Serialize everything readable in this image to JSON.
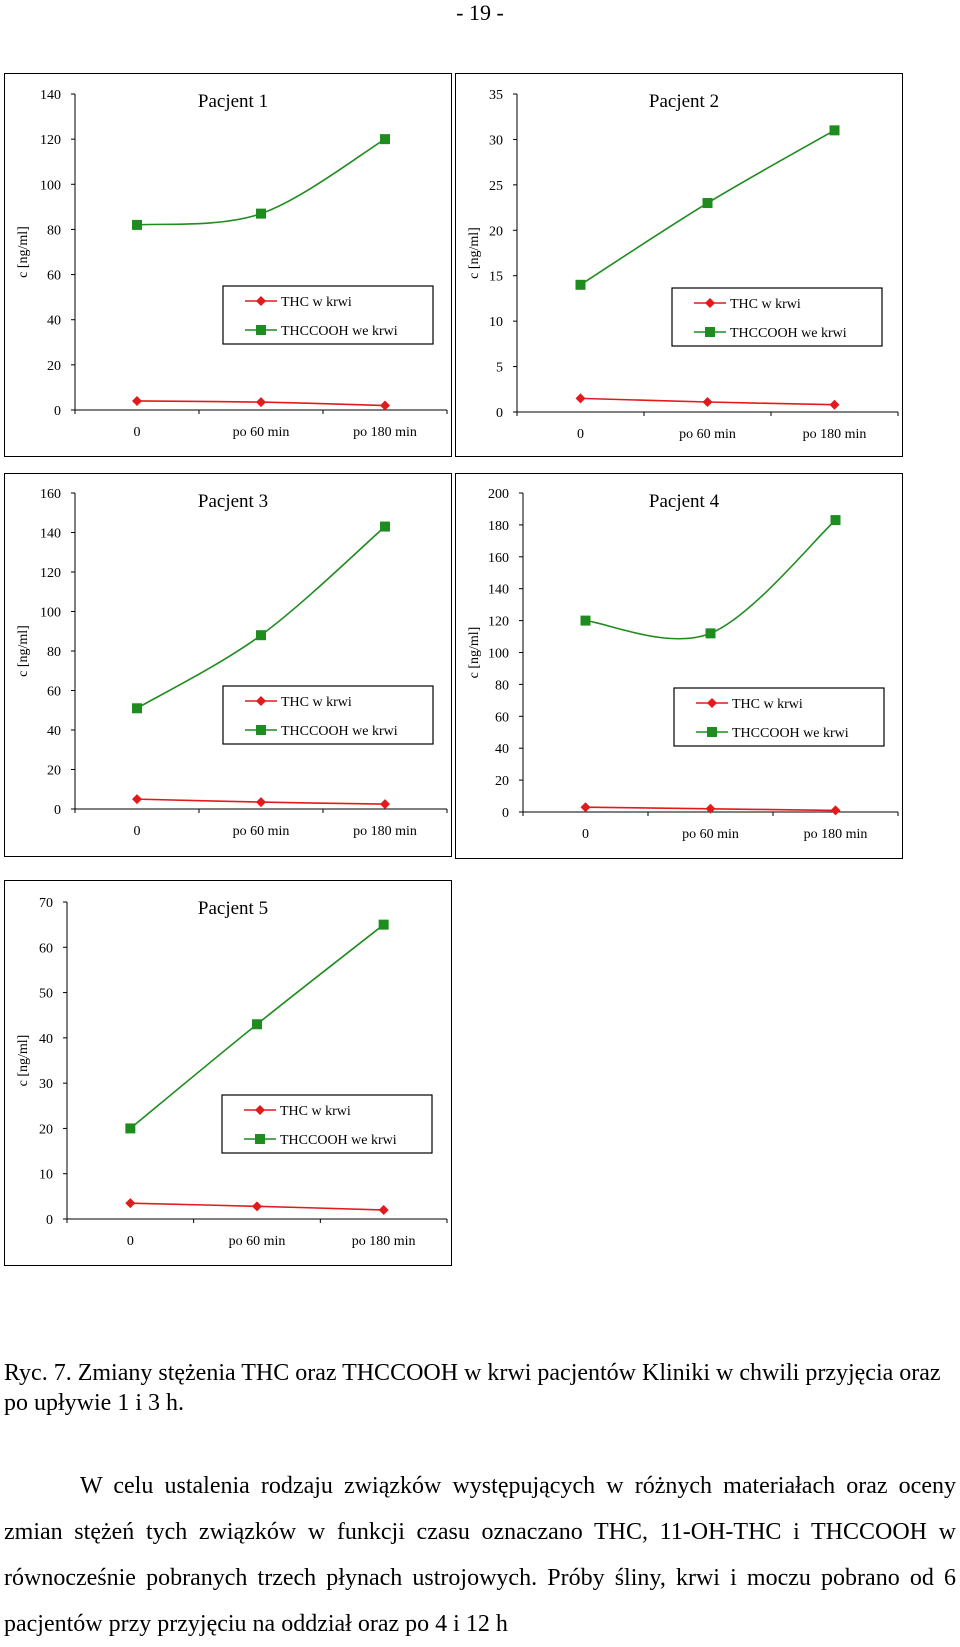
{
  "page_number": "- 19 -",
  "caption": "Ryc. 7. Zmiany stężenia THC oraz THCCOOH w krwi pacjentów Kliniki w chwili przyjęcia oraz po upływie 1 i 3 h.",
  "body_text": "W celu ustalenia rodzaju związków występujących w różnych materiałach oraz oceny zmian stężeń tych związków w funkcji czasu oznaczano THC, 11-OH-THC i THCCOOH w równocześnie pobranych trzech płynach ustrojowych. Próby śliny, krwi i moczu pobrano od 6 pacjentów przy przyjęciu na oddział oraz po 4 i 12 h",
  "colors": {
    "thc": "#e31a1c",
    "thccooh": "#1e8c1e",
    "axis": "#000000"
  },
  "chart_data": [
    {
      "type": "line",
      "title": "Pacjent 1",
      "ylabel": "c [ng/ml]",
      "categories": [
        "0",
        "po 60  min",
        "po 180  min"
      ],
      "ylim": [
        0,
        140
      ],
      "yticks": [
        0,
        20,
        40,
        60,
        80,
        100,
        120,
        140
      ],
      "series": [
        {
          "name": "THC w krwi",
          "values": [
            4,
            3.5,
            2
          ],
          "marker": "diamond"
        },
        {
          "name": "THCCOOH we krwi",
          "values": [
            82,
            87,
            120
          ],
          "marker": "square"
        }
      ]
    },
    {
      "type": "line",
      "title": "Pacjent 2",
      "ylabel": "c [ng/ml]",
      "categories": [
        "0",
        "po 60  min",
        "po 180  min"
      ],
      "ylim": [
        0,
        35
      ],
      "yticks": [
        0,
        5,
        10,
        15,
        20,
        25,
        30,
        35
      ],
      "series": [
        {
          "name": "THC w krwi",
          "values": [
            1.5,
            1.1,
            0.8
          ],
          "marker": "diamond"
        },
        {
          "name": "THCCOOH we krwi",
          "values": [
            14,
            23,
            31
          ],
          "marker": "square"
        }
      ]
    },
    {
      "type": "line",
      "title": "Pacjent 3",
      "ylabel": "c [ng/ml]",
      "categories": [
        "0",
        "po 60  min",
        "po 180  min"
      ],
      "ylim": [
        0,
        160
      ],
      "yticks": [
        0,
        20,
        40,
        60,
        80,
        100,
        120,
        140,
        160
      ],
      "series": [
        {
          "name": "THC w krwi",
          "values": [
            5,
            3.5,
            2.5
          ],
          "marker": "diamond"
        },
        {
          "name": "THCCOOH we krwi",
          "values": [
            51,
            88,
            143
          ],
          "marker": "square"
        }
      ]
    },
    {
      "type": "line",
      "title": "Pacjent 4",
      "ylabel": "c [ng/ml]",
      "categories": [
        "0",
        "po 60  min",
        "po 180  min"
      ],
      "ylim": [
        0,
        200
      ],
      "yticks": [
        0,
        20,
        40,
        60,
        80,
        100,
        120,
        140,
        160,
        180,
        200
      ],
      "series": [
        {
          "name": "THC w krwi",
          "values": [
            3,
            2,
            1
          ],
          "marker": "diamond"
        },
        {
          "name": "THCCOOH we krwi",
          "values": [
            120,
            112,
            183
          ],
          "marker": "square"
        }
      ]
    },
    {
      "type": "line",
      "title": "Pacjent 5",
      "ylabel": "c [ng/ml]",
      "categories": [
        "0",
        "po 60  min",
        "po 180  min"
      ],
      "ylim": [
        0,
        70
      ],
      "yticks": [
        0,
        10,
        20,
        30,
        40,
        50,
        60,
        70
      ],
      "series": [
        {
          "name": "THC w krwi",
          "values": [
            3.5,
            2.8,
            2
          ],
          "marker": "diamond"
        },
        {
          "name": "THCCOOH we krwi",
          "values": [
            20,
            43,
            65
          ],
          "marker": "square"
        }
      ]
    }
  ]
}
